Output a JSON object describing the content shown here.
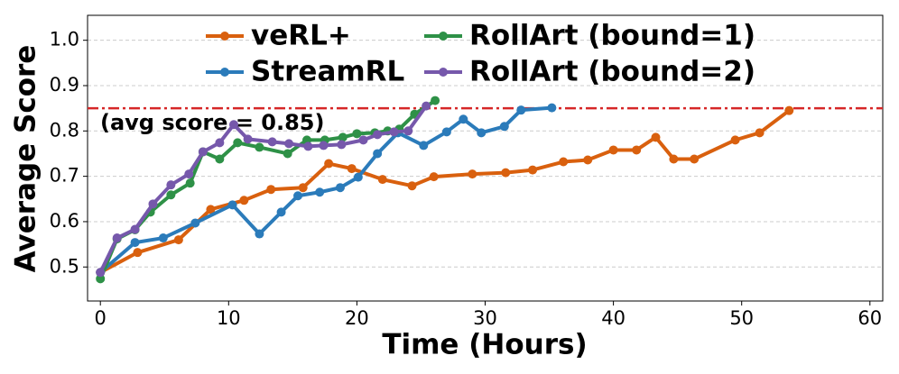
{
  "chart_data": {
    "type": "line",
    "xlabel": "Time (Hours)",
    "ylabel": "Average Score",
    "xlim": [
      -1,
      61
    ],
    "ylim": [
      0.425,
      1.055
    ],
    "xticks": [
      0,
      10,
      20,
      30,
      40,
      50,
      60
    ],
    "yticks": [
      0.5,
      0.6,
      0.7,
      0.8,
      0.9,
      {
        "value": 1,
        "label": "1.0"
      }
    ],
    "grid": true,
    "legend": "top",
    "reference_line": {
      "y": 0.85,
      "color": "#d62728",
      "label": "(avg score = 0.85)"
    },
    "series": [
      {
        "name": "veRL+",
        "color": "#d9600e",
        "x": [
          0,
          2.9,
          6.1,
          8.6,
          11.2,
          13.3,
          15.8,
          17.8,
          19.6,
          22,
          24.3,
          26,
          29,
          31.6,
          33.7,
          36.1,
          38,
          40,
          41.8,
          43.3,
          44.7,
          46.3,
          49.5,
          51.4,
          53.7
        ],
        "values": [
          0.488,
          0.532,
          0.56,
          0.627,
          0.647,
          0.671,
          0.675,
          0.728,
          0.717,
          0.693,
          0.679,
          0.699,
          0.705,
          0.708,
          0.714,
          0.732,
          0.736,
          0.758,
          0.758,
          0.786,
          0.738,
          0.738,
          0.78,
          0.796,
          0.845
        ]
      },
      {
        "name": "StreamRL",
        "color": "#2b7bba",
        "x": [
          0,
          2.7,
          4.9,
          7.4,
          10.3,
          12.4,
          14.1,
          15.4,
          17.1,
          18.7,
          20.1,
          21.6,
          23.2,
          25.2,
          27,
          28.3,
          29.7,
          31.5,
          32.8,
          35.2
        ],
        "values": [
          0.488,
          0.554,
          0.564,
          0.597,
          0.637,
          0.573,
          0.621,
          0.657,
          0.665,
          0.675,
          0.698,
          0.75,
          0.796,
          0.768,
          0.798,
          0.826,
          0.796,
          0.81,
          0.846,
          0.851
        ]
      },
      {
        "name": "RollArt (bound=1)",
        "color": "#2e9147",
        "x": [
          0,
          1.3,
          2.7,
          3.9,
          5.5,
          7,
          8,
          9.3,
          10.7,
          12.4,
          14.6,
          16.1,
          17.5,
          18.9,
          20,
          21.4,
          22.4,
          23.3,
          24.5,
          26.1
        ],
        "values": [
          0.474,
          0.562,
          0.582,
          0.621,
          0.659,
          0.685,
          0.754,
          0.738,
          0.774,
          0.764,
          0.75,
          0.78,
          0.78,
          0.786,
          0.794,
          0.796,
          0.8,
          0.804,
          0.837,
          0.867
        ]
      },
      {
        "name": "RollArt (bound=2)",
        "color": "#7658ab",
        "x": [
          0,
          1.3,
          2.7,
          4.1,
          5.5,
          6.9,
          8,
          9.3,
          10.4,
          11.5,
          13.4,
          14.7,
          16.2,
          17.4,
          18.8,
          20.5,
          21.6,
          22.9,
          24,
          25.4
        ],
        "values": [
          0.488,
          0.564,
          0.583,
          0.639,
          0.681,
          0.705,
          0.754,
          0.774,
          0.814,
          0.782,
          0.776,
          0.772,
          0.766,
          0.768,
          0.77,
          0.78,
          0.792,
          0.798,
          0.8,
          0.855
        ]
      }
    ]
  }
}
